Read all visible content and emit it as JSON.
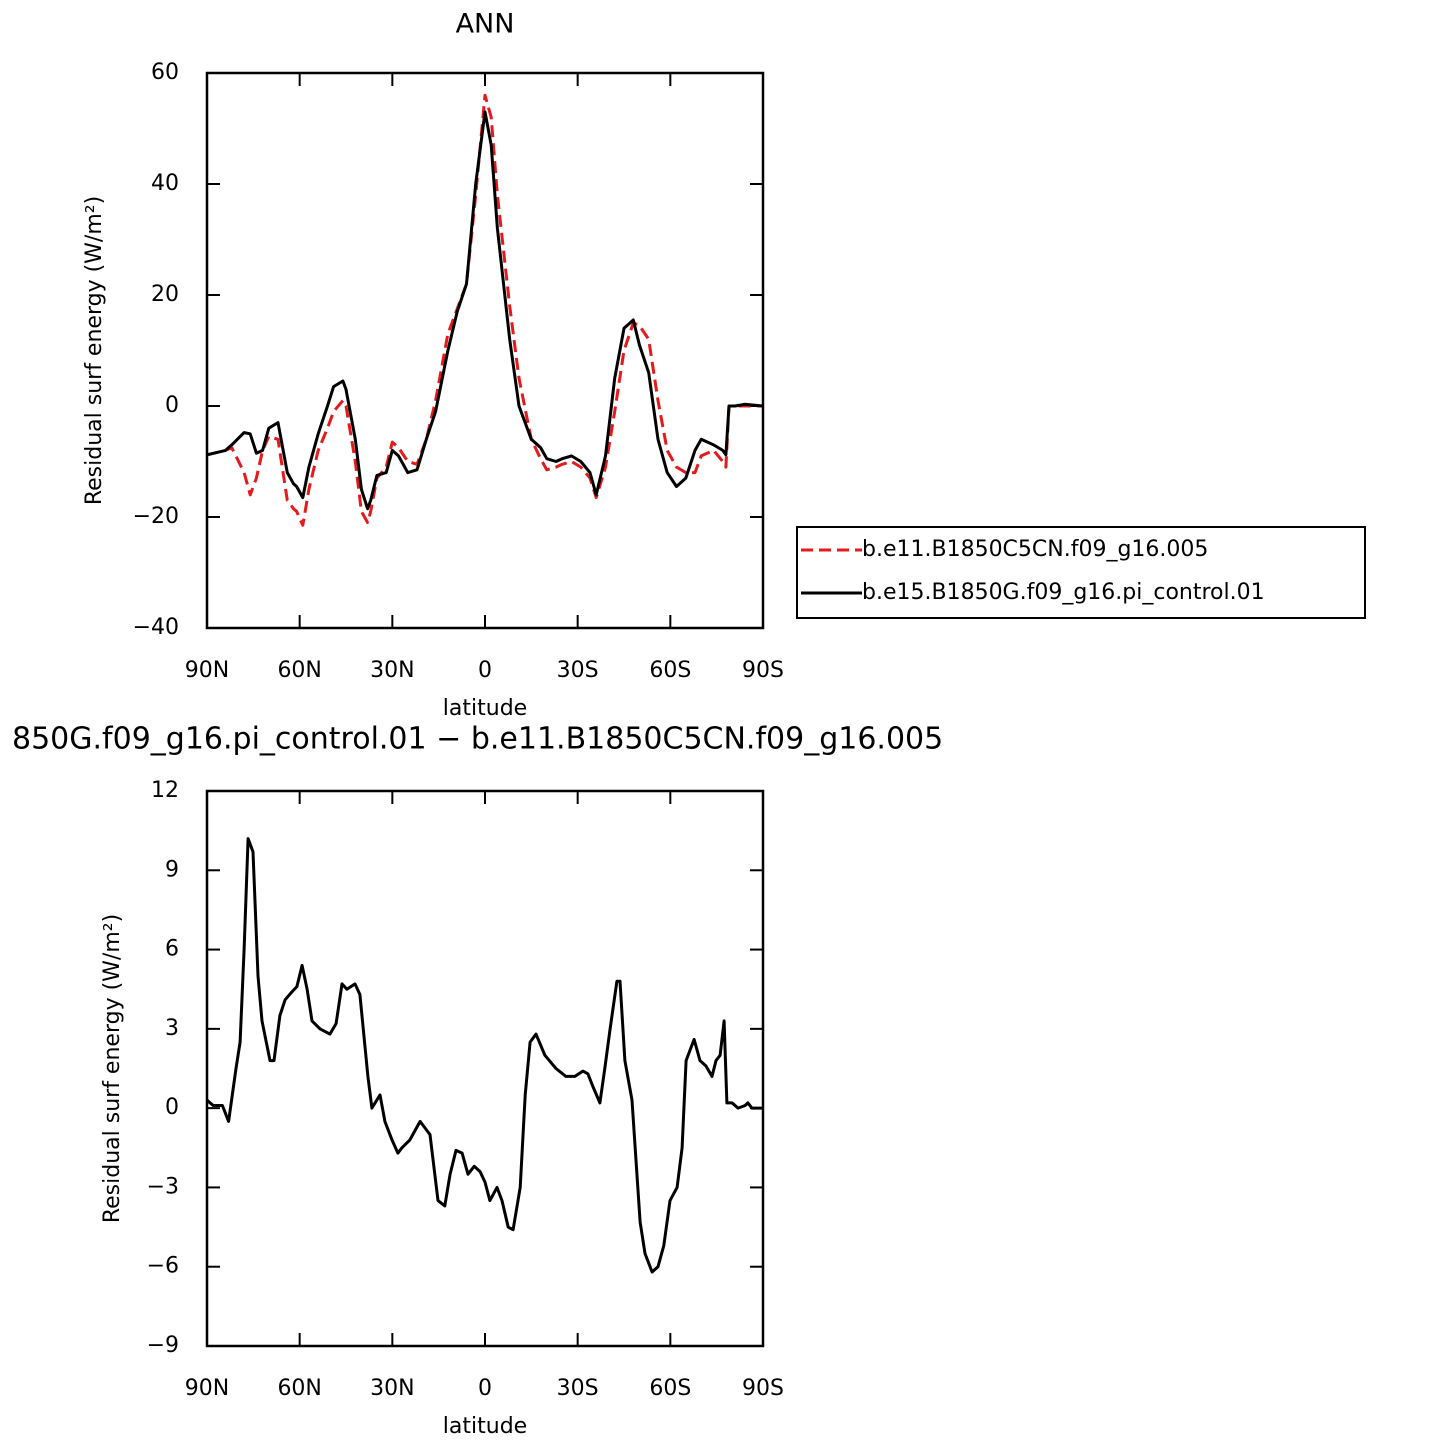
{
  "chart_data": [
    {
      "type": "line",
      "title": "ANN",
      "xlabel": "latitude",
      "ylabel": "Residual surf energy (W/m²)",
      "x": [
        90,
        84,
        82,
        78,
        76,
        74,
        72,
        70,
        67,
        64,
        62,
        61,
        59,
        57,
        54,
        51,
        49,
        46,
        45,
        42,
        40,
        38,
        37,
        35,
        32,
        30,
        28,
        25,
        22,
        19,
        16,
        12,
        9,
        6,
        3,
        0,
        -2,
        -4,
        -8,
        -11,
        -15,
        -18,
        -20,
        -23,
        -25,
        -28,
        -31,
        -34,
        -36,
        -39,
        -42,
        -45,
        -48,
        -50,
        -53,
        -56,
        -59,
        -62,
        -65,
        -68,
        -70,
        -74,
        -77,
        -78,
        -79,
        -81,
        -84,
        -90
      ],
      "series": [
        {
          "name": "b.e11.B1850C5CN.f09_g16.005",
          "color": "#e41a1c",
          "dashed": true,
          "values": [
            -8.8,
            -8,
            -7.5,
            -12,
            -16,
            -13,
            -8,
            -5.5,
            -6,
            -17,
            -18.5,
            -19,
            -21.5,
            -15,
            -8,
            -4,
            -1,
            1,
            0,
            -10,
            -19,
            -21,
            -19,
            -13,
            -11,
            -6.5,
            -7.5,
            -10,
            -10.5,
            -6,
            1,
            13,
            17.5,
            22,
            38,
            56,
            52,
            38,
            18,
            5,
            -6,
            -9.5,
            -11.5,
            -11,
            -10.5,
            -10,
            -11,
            -13,
            -16.5,
            -11,
            -1,
            10,
            15,
            14.5,
            12,
            1,
            -8,
            -11,
            -12,
            -12,
            -9,
            -8,
            -10,
            -11,
            0,
            0,
            0,
            0
          ]
        },
        {
          "name": "b.e15.B1850G.f09_g16.pi_control.01",
          "color": "#000000",
          "dashed": false,
          "values": [
            -8.8,
            -8,
            -7,
            -4.8,
            -5,
            -8.5,
            -8,
            -4,
            -3,
            -12,
            -14,
            -14.5,
            -16.5,
            -11,
            -5,
            0,
            3.5,
            4.5,
            3,
            -6,
            -15,
            -18.5,
            -17,
            -12.5,
            -12,
            -8,
            -9,
            -12,
            -11.5,
            -6,
            -1,
            10,
            17,
            22,
            40,
            53,
            47,
            32,
            12,
            0,
            -6,
            -7.5,
            -9.5,
            -10,
            -9.5,
            -9,
            -10,
            -12,
            -16,
            -9,
            5,
            14,
            15.5,
            11,
            6,
            -6,
            -12,
            -14.5,
            -13,
            -8,
            -6,
            -7,
            -8,
            -8.8,
            0,
            0,
            0.3,
            0
          ]
        }
      ],
      "xlim": [
        90,
        -90
      ],
      "xticks": [
        {
          "value": 90,
          "label": "90N"
        },
        {
          "value": 60,
          "label": "60N"
        },
        {
          "value": 30,
          "label": "30N"
        },
        0,
        {
          "value": -30,
          "label": "30S"
        },
        {
          "value": -60,
          "label": "60S"
        },
        {
          "value": -90,
          "label": "90S"
        }
      ],
      "ylim": [
        -40,
        60
      ],
      "yticks": [
        {
          "value": -40,
          "label": "−40"
        },
        {
          "value": -20,
          "label": "−20"
        },
        0,
        20,
        40,
        60
      ],
      "legend": "right"
    },
    {
      "type": "line",
      "title": "850G.f09_g16.pi_control.01 − b.e11.B1850C5CN.f09_g16.005",
      "xlabel": "latitude",
      "ylabel": "Residual surf energy (W/m²)",
      "x": [
        90,
        88,
        85,
        83,
        80.6,
        79.3,
        78,
        76.7,
        75.1,
        73.5,
        72.2,
        69.6,
        68.3,
        66.4,
        64.7,
        62.5,
        60.9,
        59.2,
        57.6,
        56,
        53.4,
        50.2,
        48.2,
        46.3,
        44.7,
        42.1,
        40.5,
        37.9,
        36.6,
        34,
        32.4,
        30.1,
        28.2,
        26.9,
        24.3,
        21,
        17.8,
        15.2,
        13,
        11.3,
        9.4,
        7.4,
        5.5,
        3.5,
        1.6,
        0,
        -1.6,
        -3.9,
        -5.5,
        -7.5,
        -9.1,
        -11.4,
        -13,
        -14.6,
        -16.5,
        -19.4,
        -23,
        -26.2,
        -29.1,
        -31.7,
        -33.3,
        -35,
        -37.2,
        -38.8,
        -40.5,
        -42.7,
        -43.7,
        -45.3,
        -47.6,
        -50.2,
        -51.8,
        -54.1,
        -56,
        -57.9,
        -59.9,
        -62.2,
        -63.8,
        -65.1,
        -66.4,
        -67.7,
        -69.6,
        -71.5,
        -73.5,
        -74.8,
        -76.1,
        -77.4,
        -78.3,
        -80,
        -81.9,
        -84.2,
        -85.1,
        -86.4,
        -90
      ],
      "series": [
        {
          "color": "#000000",
          "dashed": false,
          "values": [
            0.3,
            0.1,
            0.1,
            -0.5,
            1.5,
            2.5,
            6,
            10.2,
            9.7,
            5,
            3.3,
            1.8,
            1.8,
            3.5,
            4.1,
            4.4,
            4.6,
            5.4,
            4.5,
            3.3,
            3,
            2.8,
            3.2,
            4.7,
            4.5,
            4.7,
            4.3,
            1.2,
            0,
            0.5,
            -0.5,
            -1.2,
            -1.7,
            -1.5,
            -1.2,
            -0.5,
            -1,
            -3.5,
            -3.7,
            -2.5,
            -1.6,
            -1.7,
            -2.5,
            -2.2,
            -2.4,
            -2.8,
            -3.5,
            -3,
            -3.5,
            -4.5,
            -4.6,
            -3,
            0.5,
            2.5,
            2.8,
            2,
            1.5,
            1.2,
            1.2,
            1.4,
            1.3,
            0.8,
            0.2,
            1.5,
            3,
            4.8,
            4.8,
            1.8,
            0.3,
            -4.3,
            -5.5,
            -6.2,
            -6,
            -5.2,
            -3.5,
            -3,
            -1.5,
            1.8,
            2.2,
            2.6,
            1.8,
            1.6,
            1.2,
            1.8,
            2,
            3.3,
            0.2,
            0.2,
            0,
            0.1,
            0.2,
            0,
            0
          ]
        }
      ],
      "xlim": [
        90,
        -90
      ],
      "xticks": [
        {
          "value": 90,
          "label": "90N"
        },
        {
          "value": 60,
          "label": "60N"
        },
        {
          "value": 30,
          "label": "30N"
        },
        0,
        {
          "value": -30,
          "label": "30S"
        },
        {
          "value": -60,
          "label": "60S"
        },
        {
          "value": -90,
          "label": "90S"
        }
      ],
      "ylim": [
        -9,
        12
      ],
      "yticks": [
        {
          "value": -9,
          "label": "−9"
        },
        {
          "value": -6,
          "label": "−6"
        },
        {
          "value": -3,
          "label": "−3"
        },
        0,
        3,
        6,
        9,
        12
      ]
    }
  ]
}
